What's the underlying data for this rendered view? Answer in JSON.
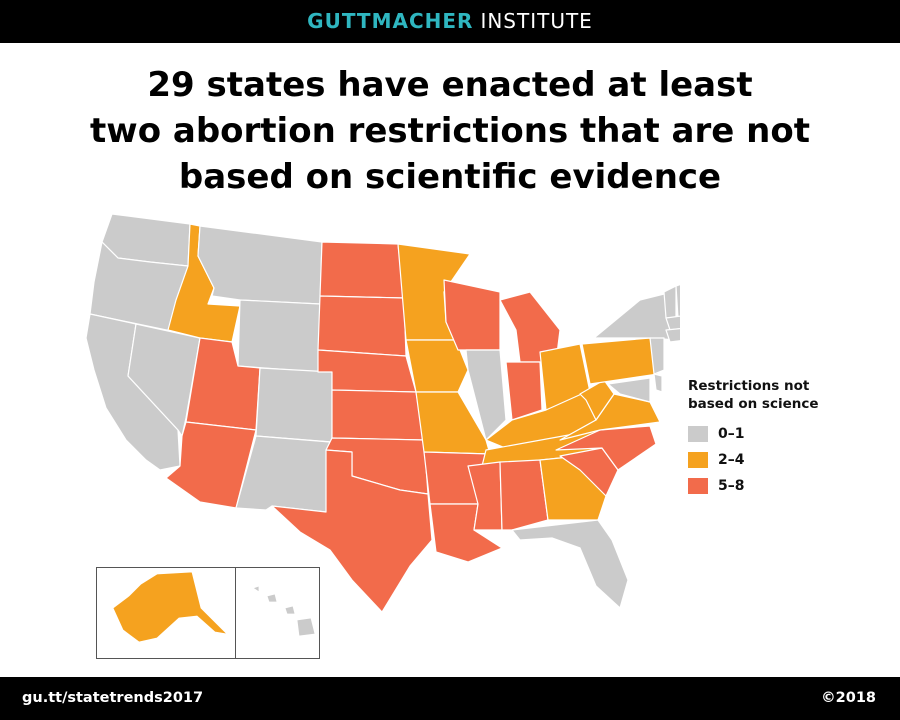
{
  "header": {
    "brand_bold": "GUTTMACHER",
    "brand_light": "INSTITUTE"
  },
  "title": {
    "line1": "29 states have enacted at least",
    "line2": "two abortion restrictions that are not",
    "line3": "based on scientific evidence"
  },
  "legend": {
    "title_line1": "Restrictions not",
    "title_line2": "based on science",
    "items": [
      {
        "label": "0–1",
        "color": "#cbcbcb"
      },
      {
        "label": "2–4",
        "color": "#f5a21f"
      },
      {
        "label": "5–8",
        "color": "#f26b4b"
      }
    ]
  },
  "map": {
    "colors": {
      "low": "#cbcbcb",
      "mid": "#f5a21f",
      "high": "#f26b4b",
      "border": "#ffffff"
    },
    "states_0_1": [
      "Washington",
      "Oregon",
      "California",
      "Nevada",
      "Montana",
      "Wyoming",
      "Colorado",
      "New Mexico",
      "Illinois",
      "Florida",
      "New York",
      "Vermont",
      "New Hampshire",
      "Maine",
      "Massachusetts",
      "Connecticut",
      "Rhode Island",
      "New Jersey",
      "Delaware",
      "Maryland",
      "Hawaii"
    ],
    "states_2_4": [
      "Idaho",
      "Minnesota",
      "Iowa",
      "Missouri",
      "Ohio",
      "Kentucky",
      "Tennessee",
      "West Virginia",
      "Virginia",
      "Pennsylvania",
      "Georgia",
      "Alaska"
    ],
    "states_5_8": [
      "Utah",
      "Arizona",
      "North Dakota",
      "South Dakota",
      "Nebraska",
      "Kansas",
      "Oklahoma",
      "Texas",
      "Arkansas",
      "Louisiana",
      "Mississippi",
      "Alabama",
      "Wisconsin",
      "Michigan",
      "Indiana",
      "North Carolina",
      "South Carolina"
    ]
  },
  "footer": {
    "url": "gu.tt/statetrends2017",
    "copyright": "©2018"
  }
}
